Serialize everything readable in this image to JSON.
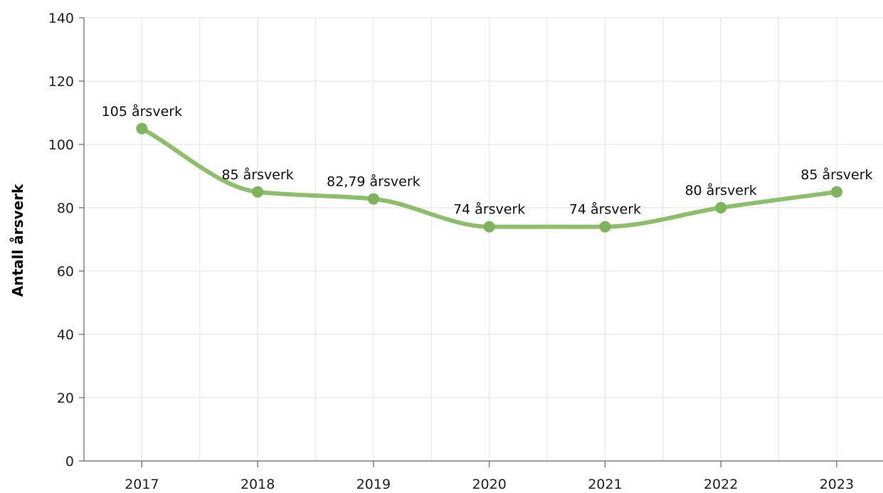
{
  "chart_data": {
    "type": "line",
    "title": "",
    "xlabel": "",
    "ylabel": "Antall årsverk",
    "categories": [
      "2017",
      "2018",
      "2019",
      "2020",
      "2021",
      "2022",
      "2023"
    ],
    "series": [
      {
        "values": [
          105,
          85,
          82.79,
          74,
          74,
          80,
          85
        ],
        "data_labels": [
          "105 årsverk",
          "85 årsverk",
          "82,79 årsverk",
          "74 årsverk",
          "74 årsverk",
          "80 årsverk",
          "85 årsverk"
        ],
        "color": "#8dbf6b",
        "marker_color": "#7db35a"
      }
    ],
    "ylim": [
      0,
      140
    ],
    "yticks": [
      0,
      20,
      40,
      60,
      80,
      100,
      120,
      140
    ],
    "grid": true,
    "smooth": true,
    "legend": "none"
  }
}
